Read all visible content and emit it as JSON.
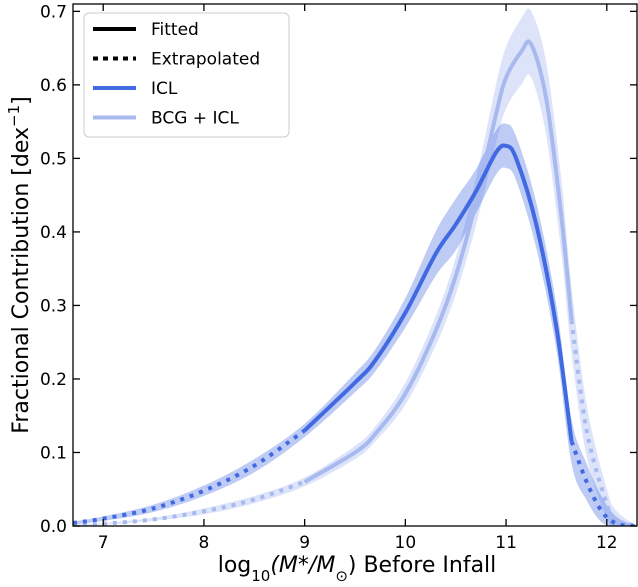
{
  "chart_data": {
    "type": "line",
    "title": "",
    "xlabel_main": "log",
    "xlabel_sub": "10",
    "xlabel_rest": "(M*/M",
    "xlabel_sun": "⊙",
    "xlabel_tail": ") Before Infall",
    "ylabel_main": "Fractional Contribution [dex",
    "ylabel_sup": "−1",
    "ylabel_tail": "]",
    "xlim": [
      6.7,
      12.3
    ],
    "ylim": [
      0.0,
      0.71
    ],
    "x_ticks": [
      7,
      8,
      9,
      10,
      11,
      12
    ],
    "y_ticks": [
      0.0,
      0.1,
      0.2,
      0.3,
      0.4,
      0.5,
      0.6,
      0.7
    ],
    "x_tick_labels": [
      "7",
      "8",
      "9",
      "10",
      "11",
      "12"
    ],
    "y_tick_labels": [
      "0.0",
      "0.1",
      "0.2",
      "0.3",
      "0.4",
      "0.5",
      "0.6",
      "0.7"
    ],
    "grid": false,
    "legend_placement": "top-left",
    "legend": [
      {
        "label": "Fitted",
        "style": "solid",
        "color": "#000000"
      },
      {
        "label": "Extrapolated",
        "style": "dotted",
        "color": "#000000"
      },
      {
        "label": "ICL",
        "style": "solid",
        "color": "#4169E1"
      },
      {
        "label": "BCG + ICL",
        "style": "solid",
        "color": "#A7B9EE"
      }
    ],
    "series": [
      {
        "name": "ICL",
        "color": "#4169E1",
        "band_color": "#4169E1",
        "band_opacity": 0.35,
        "fitted_range": [
          9.0,
          11.65
        ],
        "x": [
          6.7,
          7.0,
          7.5,
          8.0,
          8.5,
          9.0,
          9.5,
          9.7,
          10.0,
          10.3,
          10.5,
          10.7,
          10.9,
          11.0,
          11.1,
          11.3,
          11.5,
          11.65,
          11.8,
          11.95,
          12.1,
          12.3
        ],
        "y": [
          0.004,
          0.01,
          0.024,
          0.048,
          0.082,
          0.13,
          0.195,
          0.225,
          0.29,
          0.37,
          0.41,
          0.455,
          0.508,
          0.517,
          0.5,
          0.41,
          0.27,
          0.115,
          0.06,
          0.02,
          0.003,
          0.0
        ],
        "y_lower": [
          0.002,
          0.007,
          0.019,
          0.041,
          0.073,
          0.121,
          0.182,
          0.21,
          0.27,
          0.34,
          0.375,
          0.425,
          0.478,
          0.487,
          0.47,
          0.378,
          0.24,
          0.085,
          0.035,
          0.005,
          0.0,
          0.0
        ],
        "y_upper": [
          0.006,
          0.013,
          0.029,
          0.055,
          0.091,
          0.139,
          0.208,
          0.24,
          0.31,
          0.4,
          0.445,
          0.485,
          0.538,
          0.547,
          0.53,
          0.44,
          0.3,
          0.145,
          0.085,
          0.04,
          0.012,
          0.0
        ]
      },
      {
        "name": "BCG + ICL",
        "color": "#A7B9EE",
        "band_color": "#4169E1",
        "band_opacity": 0.18,
        "fitted_range": [
          9.0,
          11.65
        ],
        "x": [
          6.7,
          7.0,
          7.5,
          8.0,
          8.5,
          9.0,
          9.5,
          9.7,
          10.0,
          10.3,
          10.5,
          10.7,
          10.9,
          11.0,
          11.15,
          11.25,
          11.4,
          11.55,
          11.65,
          11.8,
          12.0,
          12.1,
          12.3
        ],
        "y": [
          0.001,
          0.003,
          0.009,
          0.02,
          0.036,
          0.06,
          0.1,
          0.125,
          0.18,
          0.265,
          0.34,
          0.44,
          0.56,
          0.61,
          0.645,
          0.655,
          0.58,
          0.42,
          0.28,
          0.13,
          0.03,
          0.008,
          0.0
        ],
        "y_lower": [
          0.0,
          0.002,
          0.007,
          0.016,
          0.031,
          0.054,
          0.091,
          0.115,
          0.165,
          0.245,
          0.315,
          0.408,
          0.52,
          0.568,
          0.6,
          0.61,
          0.53,
          0.37,
          0.235,
          0.095,
          0.01,
          0.0,
          0.0
        ],
        "y_upper": [
          0.002,
          0.004,
          0.011,
          0.024,
          0.041,
          0.066,
          0.109,
          0.135,
          0.195,
          0.285,
          0.365,
          0.472,
          0.6,
          0.652,
          0.69,
          0.7,
          0.63,
          0.47,
          0.325,
          0.165,
          0.05,
          0.02,
          0.0
        ]
      }
    ]
  }
}
